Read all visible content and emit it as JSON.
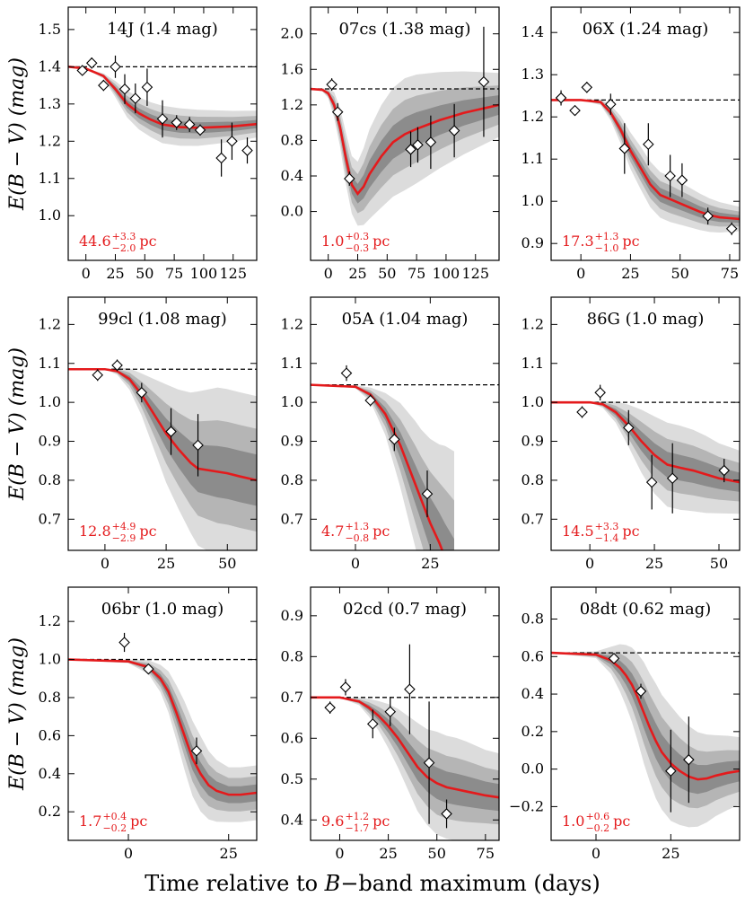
{
  "figure": {
    "xlabel_parts": [
      "Time relative to ",
      "B",
      "−band maximum (days)"
    ],
    "ylabel": "E(B − V)  (mag)",
    "colors": {
      "model": "#e41a1c",
      "annotation": "#e41a1c",
      "band_light": "#dcdcdc",
      "band_mid": "#b5b5b5",
      "band_dark": "#8c8c8c",
      "reference": "#000000"
    }
  },
  "chart_data": [
    {
      "type": "line",
      "title": "14J (1.4 mag)",
      "initial_excess": 1.4,
      "xlim": [
        -15,
        145
      ],
      "ylim": [
        0.88,
        1.56
      ],
      "xticks": [
        0,
        25,
        50,
        75,
        100,
        125
      ],
      "yticks": [
        1.0,
        1.1,
        1.2,
        1.3,
        1.4,
        1.5
      ],
      "model": {
        "x": [
          -15,
          0,
          15,
          25,
          35,
          45,
          55,
          65,
          80,
          95,
          110,
          125,
          145
        ],
        "y": [
          1.4,
          1.395,
          1.375,
          1.34,
          1.3,
          1.275,
          1.258,
          1.245,
          1.238,
          1.236,
          1.238,
          1.24,
          1.246
        ]
      },
      "band": {
        "width": [
          0,
          0,
          0.004,
          0.012,
          0.02,
          0.024,
          0.026,
          0.028,
          0.028,
          0.027,
          0.025,
          0.023,
          0.02
        ]
      },
      "points": [
        {
          "x": -3,
          "y": 1.39,
          "err": 0.01
        },
        {
          "x": 5,
          "y": 1.41,
          "err": 0.015
        },
        {
          "x": 15,
          "y": 1.35,
          "err": 0.015
        },
        {
          "x": 25,
          "y": 1.4,
          "err": 0.03
        },
        {
          "x": 33,
          "y": 1.34,
          "err": 0.04
        },
        {
          "x": 42,
          "y": 1.315,
          "err": 0.04
        },
        {
          "x": 52,
          "y": 1.345,
          "err": 0.05
        },
        {
          "x": 65,
          "y": 1.26,
          "err": 0.05
        },
        {
          "x": 77,
          "y": 1.25,
          "err": 0.02
        },
        {
          "x": 88,
          "y": 1.245,
          "err": 0.02
        },
        {
          "x": 97,
          "y": 1.23,
          "err": 0.015
        },
        {
          "x": 115,
          "y": 1.155,
          "err": 0.05
        },
        {
          "x": 124,
          "y": 1.2,
          "err": 0.05
        },
        {
          "x": 137,
          "y": 1.175,
          "err": 0.035
        }
      ],
      "annotation": {
        "value": "44.6",
        "sup": "+3.3",
        "sub": "−2.0",
        "unit": "pc"
      }
    },
    {
      "type": "line",
      "title": "07cs (1.38 mag)",
      "initial_excess": 1.38,
      "xlim": [
        -15,
        145
      ],
      "ylim": [
        -0.55,
        2.3
      ],
      "xticks": [
        0,
        25,
        50,
        75,
        100,
        125
      ],
      "yticks": [
        0.0,
        0.4,
        0.8,
        1.2,
        1.6,
        2.0
      ],
      "model": {
        "x": [
          -15,
          -5,
          0,
          5,
          10,
          15,
          20,
          25,
          30,
          35,
          45,
          55,
          65,
          75,
          85,
          95,
          105,
          115,
          125,
          135,
          145
        ],
        "y": [
          1.38,
          1.37,
          1.33,
          1.2,
          0.95,
          0.6,
          0.3,
          0.2,
          0.28,
          0.42,
          0.62,
          0.78,
          0.87,
          0.93,
          0.98,
          1.03,
          1.07,
          1.11,
          1.14,
          1.17,
          1.2
        ]
      },
      "band": {
        "width": [
          0,
          0.01,
          0.03,
          0.08,
          0.12,
          0.16,
          0.18,
          0.2,
          0.24,
          0.28,
          0.32,
          0.34,
          0.35,
          0.34,
          0.32,
          0.3,
          0.28,
          0.26,
          0.24,
          0.22,
          0.2
        ]
      },
      "points": [
        {
          "x": 3,
          "y": 1.43,
          "err": 0.07
        },
        {
          "x": 8,
          "y": 1.12,
          "err": 0.1
        },
        {
          "x": 18,
          "y": 0.37,
          "err": 0.08
        },
        {
          "x": 70,
          "y": 0.7,
          "err": 0.2
        },
        {
          "x": 76,
          "y": 0.75,
          "err": 0.2
        },
        {
          "x": 87,
          "y": 0.78,
          "err": 0.3
        },
        {
          "x": 107,
          "y": 0.91,
          "err": 0.3
        },
        {
          "x": 132,
          "y": 1.46,
          "err": 0.62
        }
      ],
      "annotation": {
        "value": "1.0",
        "sup": "+0.3",
        "sub": "−0.3",
        "unit": "pc"
      }
    },
    {
      "type": "line",
      "title": "06X (1.24 mag)",
      "initial_excess": 1.24,
      "xlim": [
        -15,
        80
      ],
      "ylim": [
        0.86,
        1.46
      ],
      "xticks": [
        0,
        25,
        50,
        75
      ],
      "yticks": [
        0.9,
        1.0,
        1.1,
        1.2,
        1.3,
        1.4
      ],
      "model": {
        "x": [
          -15,
          0,
          10,
          15,
          20,
          25,
          30,
          35,
          40,
          45,
          50,
          55,
          60,
          65,
          70,
          75,
          80
        ],
        "y": [
          1.24,
          1.24,
          1.235,
          1.21,
          1.17,
          1.12,
          1.08,
          1.04,
          1.015,
          1.005,
          0.995,
          0.985,
          0.975,
          0.967,
          0.962,
          0.96,
          0.958
        ]
      },
      "band": {
        "width": [
          0,
          0,
          0.004,
          0.01,
          0.018,
          0.024,
          0.028,
          0.03,
          0.03,
          0.03,
          0.028,
          0.026,
          0.024,
          0.022,
          0.02,
          0.018,
          0.016
        ]
      },
      "points": [
        {
          "x": -10,
          "y": 1.245,
          "err": 0.018
        },
        {
          "x": -3,
          "y": 1.215,
          "err": 0.012
        },
        {
          "x": 3,
          "y": 1.27,
          "err": 0.013
        },
        {
          "x": 15,
          "y": 1.23,
          "err": 0.025
        },
        {
          "x": 22,
          "y": 1.125,
          "err": 0.06
        },
        {
          "x": 34,
          "y": 1.135,
          "err": 0.05
        },
        {
          "x": 45,
          "y": 1.06,
          "err": 0.05
        },
        {
          "x": 51,
          "y": 1.05,
          "err": 0.04
        },
        {
          "x": 64,
          "y": 0.965,
          "err": 0.02
        },
        {
          "x": 76,
          "y": 0.935,
          "err": 0.015
        }
      ],
      "annotation": {
        "value": "17.3",
        "sup": "+1.3",
        "sub": "−1.0",
        "unit": "pc"
      }
    },
    {
      "type": "line",
      "title": "99cl (1.08 mag)",
      "initial_excess": 1.085,
      "xlim": [
        -15,
        62
      ],
      "ylim": [
        0.62,
        1.27
      ],
      "xticks": [
        0,
        25,
        50
      ],
      "yticks": [
        0.7,
        0.8,
        0.9,
        1.0,
        1.1,
        1.2
      ],
      "model": {
        "x": [
          -15,
          0,
          5,
          10,
          15,
          20,
          25,
          30,
          35,
          38,
          42,
          46,
          50,
          55,
          62
        ],
        "y": [
          1.085,
          1.085,
          1.08,
          1.06,
          1.02,
          0.97,
          0.92,
          0.88,
          0.845,
          0.83,
          0.826,
          0.822,
          0.818,
          0.81,
          0.8
        ]
      },
      "band": {
        "width": [
          0,
          0,
          0.005,
          0.015,
          0.03,
          0.05,
          0.07,
          0.085,
          0.1,
          0.11,
          0.115,
          0.12,
          0.12,
          0.12,
          0.12
        ]
      },
      "points": [
        {
          "x": -3,
          "y": 1.07,
          "err": 0.015
        },
        {
          "x": 5,
          "y": 1.095,
          "err": 0.015
        },
        {
          "x": 15,
          "y": 1.025,
          "err": 0.025
        },
        {
          "x": 27,
          "y": 0.925,
          "err": 0.06
        },
        {
          "x": 38,
          "y": 0.89,
          "err": 0.08
        }
      ],
      "annotation": {
        "value": "12.8",
        "sup": "+4.9",
        "sub": "−2.9",
        "unit": "pc"
      }
    },
    {
      "type": "line",
      "title": "05A (1.04 mag)",
      "initial_excess": 1.045,
      "xlim": [
        -15,
        48
      ],
      "ylim": [
        0.62,
        1.27
      ],
      "xticks": [
        0,
        25
      ],
      "yticks": [
        0.7,
        0.8,
        0.9,
        1.0,
        1.1,
        1.2
      ],
      "model": {
        "x": [
          -15,
          0,
          5,
          10,
          15,
          20,
          22,
          25,
          28,
          30,
          33
        ],
        "y": [
          1.045,
          1.04,
          1.02,
          0.97,
          0.89,
          0.79,
          0.75,
          0.69,
          0.64,
          0.6,
          0.55
        ]
      },
      "band": {
        "width": [
          0,
          0.002,
          0.01,
          0.03,
          0.06,
          0.09,
          0.1,
          0.12,
          0.14,
          0.16,
          0.18
        ]
      },
      "points": [
        {
          "x": -3,
          "y": 1.075,
          "err": 0.02
        },
        {
          "x": 5,
          "y": 1.005,
          "err": 0.015
        },
        {
          "x": 13,
          "y": 0.905,
          "err": 0.03
        },
        {
          "x": 24,
          "y": 0.765,
          "err": 0.06
        }
      ],
      "annotation": {
        "value": "4.7",
        "sup": "+1.3",
        "sub": "−0.8",
        "unit": "pc"
      }
    },
    {
      "type": "line",
      "title": "86G (1.0 mag)",
      "initial_excess": 1.0,
      "xlim": [
        -15,
        58
      ],
      "ylim": [
        0.62,
        1.27
      ],
      "xticks": [
        0,
        25,
        50
      ],
      "yticks": [
        0.7,
        0.8,
        0.9,
        1.0,
        1.1,
        1.2
      ],
      "model": {
        "x": [
          -15,
          0,
          5,
          10,
          15,
          20,
          25,
          30,
          35,
          40,
          45,
          50,
          58
        ],
        "y": [
          1.0,
          1.0,
          0.995,
          0.975,
          0.94,
          0.9,
          0.865,
          0.84,
          0.832,
          0.825,
          0.815,
          0.805,
          0.795
        ]
      },
      "band": {
        "width": [
          0,
          0,
          0.005,
          0.015,
          0.03,
          0.045,
          0.055,
          0.06,
          0.06,
          0.058,
          0.055,
          0.05,
          0.045
        ]
      },
      "points": [
        {
          "x": -3,
          "y": 0.975,
          "err": 0.015
        },
        {
          "x": 4,
          "y": 1.025,
          "err": 0.02
        },
        {
          "x": 15,
          "y": 0.935,
          "err": 0.045
        },
        {
          "x": 24,
          "y": 0.795,
          "err": 0.07
        },
        {
          "x": 32,
          "y": 0.805,
          "err": 0.09
        },
        {
          "x": 52,
          "y": 0.825,
          "err": 0.03
        }
      ],
      "annotation": {
        "value": "14.5",
        "sup": "+3.3",
        "sub": "−1.4",
        "unit": "pc"
      }
    },
    {
      "type": "line",
      "title": "06br (1.0 mag)",
      "initial_excess": 1.0,
      "xlim": [
        -15,
        32
      ],
      "ylim": [
        0.05,
        1.38
      ],
      "xticks": [
        0,
        25
      ],
      "yticks": [
        0.2,
        0.4,
        0.6,
        0.8,
        1.0,
        1.2
      ],
      "model": {
        "x": [
          -15,
          0,
          5,
          8,
          10,
          12,
          14,
          16,
          18,
          20,
          22,
          25,
          28,
          32
        ],
        "y": [
          1.0,
          0.99,
          0.96,
          0.9,
          0.83,
          0.72,
          0.6,
          0.48,
          0.4,
          0.34,
          0.31,
          0.29,
          0.29,
          0.3
        ]
      },
      "band": {
        "width": [
          0,
          0.005,
          0.02,
          0.04,
          0.06,
          0.08,
          0.1,
          0.11,
          0.11,
          0.1,
          0.09,
          0.08,
          0.08,
          0.08
        ]
      },
      "points": [
        {
          "x": -1,
          "y": 1.09,
          "err": 0.05
        },
        {
          "x": 5,
          "y": 0.95,
          "err": 0.01
        },
        {
          "x": 17,
          "y": 0.52,
          "err": 0.07
        }
      ],
      "annotation": {
        "value": "1.7",
        "sup": "+0.4",
        "sub": "−0.2",
        "unit": "pc"
      }
    },
    {
      "type": "line",
      "title": "02cd (0.7 mag)",
      "initial_excess": 0.7,
      "xlim": [
        -15,
        82
      ],
      "ylim": [
        0.35,
        0.97
      ],
      "xticks": [
        0,
        25,
        50,
        75
      ],
      "yticks": [
        0.4,
        0.5,
        0.6,
        0.7,
        0.8,
        0.9
      ],
      "model": {
        "x": [
          -15,
          0,
          10,
          15,
          20,
          25,
          30,
          35,
          40,
          45,
          50,
          55,
          60,
          65,
          70,
          75,
          82
        ],
        "y": [
          0.7,
          0.7,
          0.69,
          0.675,
          0.655,
          0.63,
          0.6,
          0.565,
          0.53,
          0.505,
          0.49,
          0.48,
          0.475,
          0.47,
          0.465,
          0.46,
          0.455
        ]
      },
      "band": {
        "width": [
          0,
          0,
          0.005,
          0.012,
          0.02,
          0.03,
          0.04,
          0.05,
          0.06,
          0.065,
          0.07,
          0.07,
          0.07,
          0.068,
          0.065,
          0.062,
          0.06
        ]
      },
      "points": [
        {
          "x": -5,
          "y": 0.675,
          "err": 0.015
        },
        {
          "x": 3,
          "y": 0.725,
          "err": 0.02
        },
        {
          "x": 17,
          "y": 0.635,
          "err": 0.035
        },
        {
          "x": 26,
          "y": 0.665,
          "err": 0.035
        },
        {
          "x": 36,
          "y": 0.72,
          "err": 0.11
        },
        {
          "x": 46,
          "y": 0.54,
          "err": 0.15
        },
        {
          "x": 55,
          "y": 0.415,
          "err": 0.035
        }
      ],
      "annotation": {
        "value": "9.6",
        "sup": "+1.2",
        "sub": "−1.7",
        "unit": "pc"
      }
    },
    {
      "type": "line",
      "title": "08dt (0.62 mag)",
      "initial_excess": 0.62,
      "xlim": [
        -15,
        48
      ],
      "ylim": [
        -0.38,
        0.97
      ],
      "xticks": [
        0,
        25
      ],
      "yticks": [
        -0.2,
        0.0,
        0.2,
        0.4,
        0.6,
        0.8
      ],
      "model": {
        "x": [
          -15,
          0,
          5,
          8,
          10,
          12,
          14,
          16,
          18,
          20,
          22,
          25,
          28,
          31,
          34,
          37,
          40,
          44,
          48
        ],
        "y": [
          0.62,
          0.61,
          0.58,
          0.54,
          0.5,
          0.45,
          0.38,
          0.3,
          0.22,
          0.15,
          0.09,
          0.03,
          -0.01,
          -0.04,
          -0.055,
          -0.05,
          -0.035,
          -0.02,
          -0.01
        ]
      },
      "band": {
        "width": [
          0,
          0.01,
          0.04,
          0.07,
          0.09,
          0.11,
          0.13,
          0.15,
          0.16,
          0.17,
          0.17,
          0.17,
          0.16,
          0.15,
          0.14,
          0.13,
          0.12,
          0.11,
          0.1
        ]
      },
      "points": [
        {
          "x": 6,
          "y": 0.59,
          "err": 0.015
        },
        {
          "x": 15,
          "y": 0.415,
          "err": 0.04
        },
        {
          "x": 25,
          "y": -0.01,
          "err": 0.22
        },
        {
          "x": 31,
          "y": 0.05,
          "err": 0.23
        }
      ],
      "annotation": {
        "value": "1.0",
        "sup": "+0.6",
        "sub": "−0.2",
        "unit": "pc"
      }
    }
  ]
}
